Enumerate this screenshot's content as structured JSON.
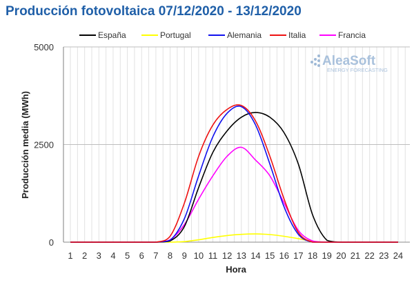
{
  "chart_data": {
    "type": "line",
    "title": "Producción fotovoltaica 07/12/2020 - 13/12/2020",
    "xlabel": "Hora",
    "ylabel": "Producción media (MWh)",
    "ylim": [
      0,
      5000
    ],
    "yticks": [
      0,
      2500,
      5000
    ],
    "xlim": [
      1,
      24
    ],
    "categories": [
      "1",
      "2",
      "3",
      "4",
      "5",
      "6",
      "7",
      "8",
      "9",
      "10",
      "11",
      "12",
      "13",
      "14",
      "15",
      "16",
      "17",
      "18",
      "19",
      "20",
      "21",
      "22",
      "23",
      "24"
    ],
    "grid": {
      "vertical": true,
      "horizontal": true
    },
    "legend_position": "top",
    "watermark": {
      "brand": "AleaSoft",
      "tagline": "ENERGY FORECASTING"
    },
    "series": [
      {
        "name": "España",
        "color": "#000000",
        "values": [
          0,
          0,
          0,
          0,
          0,
          0,
          0,
          30,
          400,
          1400,
          2300,
          2850,
          3200,
          3320,
          3200,
          2800,
          2000,
          700,
          50,
          0,
          0,
          0,
          0,
          0
        ]
      },
      {
        "name": "Portugal",
        "color": "#ffff00",
        "values": [
          0,
          0,
          0,
          0,
          0,
          0,
          0,
          0,
          15,
          60,
          120,
          170,
          200,
          210,
          195,
          150,
          90,
          20,
          0,
          0,
          0,
          0,
          0,
          0
        ]
      },
      {
        "name": "Alemania",
        "color": "#1010ee",
        "values": [
          0,
          0,
          0,
          0,
          0,
          0,
          0,
          50,
          600,
          1700,
          2700,
          3300,
          3470,
          3000,
          2000,
          900,
          200,
          0,
          0,
          0,
          0,
          0,
          0,
          0
        ]
      },
      {
        "name": "Italia",
        "color": "#ee1111",
        "values": [
          0,
          0,
          0,
          0,
          0,
          0,
          0,
          150,
          1000,
          2200,
          3000,
          3400,
          3500,
          3100,
          2200,
          1100,
          250,
          0,
          0,
          0,
          0,
          0,
          0,
          0
        ]
      },
      {
        "name": "Francia",
        "color": "#ff00ff",
        "values": [
          0,
          0,
          0,
          0,
          0,
          0,
          0,
          60,
          450,
          1100,
          1700,
          2200,
          2430,
          2100,
          1700,
          1000,
          300,
          30,
          0,
          0,
          0,
          0,
          0,
          0
        ]
      }
    ]
  }
}
